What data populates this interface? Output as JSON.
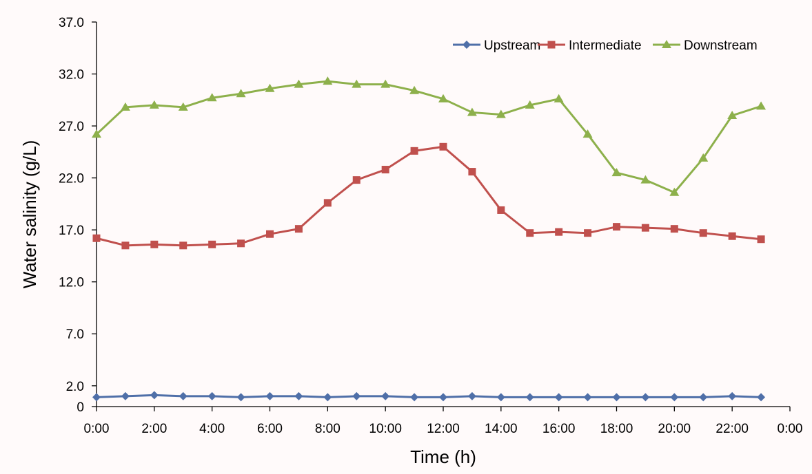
{
  "chart_data": {
    "type": "line",
    "title": "",
    "xlabel": "Time (h)",
    "ylabel": "Water salinity (g/L)",
    "xlim": [
      0,
      24
    ],
    "ylim": [
      0,
      37
    ],
    "x_ticks": [
      {
        "v": 0,
        "label": "0:00"
      },
      {
        "v": 2,
        "label": "2:00"
      },
      {
        "v": 4,
        "label": "4:00"
      },
      {
        "v": 6,
        "label": "6:00"
      },
      {
        "v": 8,
        "label": "8:00"
      },
      {
        "v": 10,
        "label": "10:00"
      },
      {
        "v": 12,
        "label": "12:00"
      },
      {
        "v": 14,
        "label": "14:00"
      },
      {
        "v": 16,
        "label": "16:00"
      },
      {
        "v": 18,
        "label": "18:00"
      },
      {
        "v": 20,
        "label": "20:00"
      },
      {
        "v": 22,
        "label": "22:00"
      },
      {
        "v": 24,
        "label": "0:00"
      }
    ],
    "y_ticks": [
      {
        "v": 0,
        "label": "0"
      },
      {
        "v": 2,
        "label": "2.0"
      },
      {
        "v": 7,
        "label": "7.0"
      },
      {
        "v": 12,
        "label": "12.0"
      },
      {
        "v": 17,
        "label": "17.0"
      },
      {
        "v": 22,
        "label": "22.0"
      },
      {
        "v": 27,
        "label": "27.0"
      },
      {
        "v": 32,
        "label": "32.0"
      },
      {
        "v": 37,
        "label": "37.0"
      }
    ],
    "grid": false,
    "legend_position": "top-right",
    "x": [
      0,
      1,
      2,
      3,
      4,
      5,
      6,
      7,
      8,
      9,
      10,
      11,
      12,
      13,
      14,
      15,
      16,
      17,
      18,
      19,
      20,
      21,
      22,
      23
    ],
    "series": [
      {
        "name": "Upstream",
        "color": "#4f6fa8",
        "marker": "diamond",
        "values": [
          0.9,
          1.0,
          1.1,
          1.0,
          1.0,
          0.9,
          1.0,
          1.0,
          0.9,
          1.0,
          1.0,
          0.9,
          0.9,
          1.0,
          0.9,
          0.9,
          0.9,
          0.9,
          0.9,
          0.9,
          0.9,
          0.9,
          1.0,
          0.9
        ]
      },
      {
        "name": "Intermediate",
        "color": "#c0504d",
        "marker": "square",
        "values": [
          16.2,
          15.5,
          15.6,
          15.5,
          15.6,
          15.7,
          16.6,
          17.1,
          19.6,
          21.8,
          22.8,
          24.6,
          25.0,
          22.6,
          18.9,
          16.7,
          16.8,
          16.7,
          17.3,
          17.2,
          17.1,
          16.7,
          16.4,
          16.1
        ]
      },
      {
        "name": "Downstream",
        "color": "#8db04b",
        "marker": "triangle",
        "values": [
          26.2,
          28.8,
          29.0,
          28.8,
          29.7,
          30.1,
          30.6,
          31.0,
          31.3,
          31.0,
          31.0,
          30.4,
          29.6,
          28.3,
          28.1,
          29.0,
          29.6,
          26.2,
          22.5,
          21.8,
          20.6,
          23.9,
          28.0,
          28.9
        ]
      }
    ]
  }
}
